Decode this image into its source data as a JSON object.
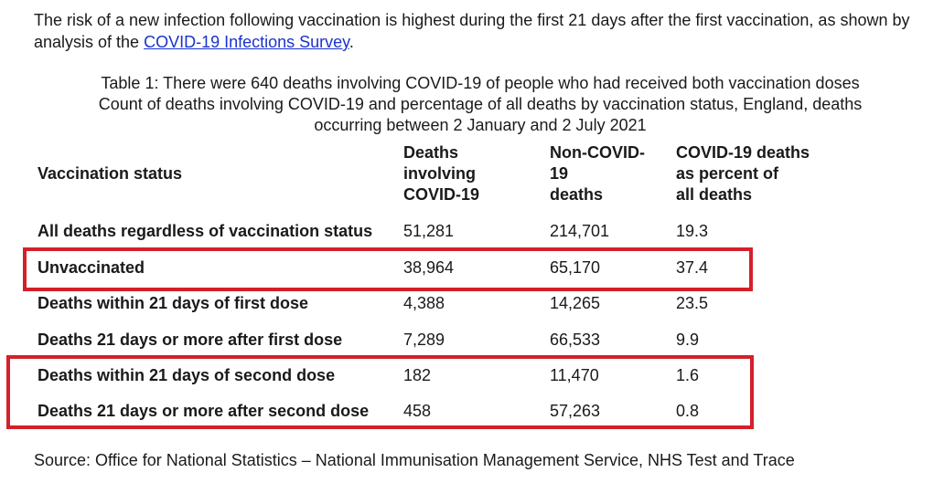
{
  "intro": {
    "text_before": "The risk of a new infection following vaccination is highest during the first 21 days after the first vaccination, as shown by analysis of the ",
    "link_text": "COVID-19 Infections Survey",
    "text_after": "."
  },
  "caption": {
    "line1": "Table 1: There were 640 deaths involving COVID-19 of people who had received both vaccination doses",
    "line2": "Count of deaths involving COVID-19 and percentage of all deaths by vaccination status, England, deaths",
    "line3": "occurring between 2 January and 2 July 2021"
  },
  "headers": {
    "status": "Vaccination status",
    "deaths_covid": [
      "Deaths",
      "involving",
      "COVID-19"
    ],
    "non_covid": [
      "Non-COVID-",
      "19",
      "deaths"
    ],
    "percent": [
      "COVID-19 deaths",
      "as percent of",
      "all deaths"
    ]
  },
  "rows": [
    {
      "label": "All deaths regardless of vaccination status",
      "deaths_covid": "51,281",
      "non_covid": "214,701",
      "percent": "19.3"
    },
    {
      "label": "Unvaccinated",
      "deaths_covid": "38,964",
      "non_covid": "65,170",
      "percent": "37.4"
    },
    {
      "label": "Deaths within 21 days of first dose",
      "deaths_covid": "4,388",
      "non_covid": "14,265",
      "percent": "23.5"
    },
    {
      "label": "Deaths 21 days or more after first dose",
      "deaths_covid": "7,289",
      "non_covid": "66,533",
      "percent": "9.9"
    },
    {
      "label": "Deaths within 21 days of second dose",
      "deaths_covid": "182",
      "non_covid": "11,470",
      "percent": "1.6"
    },
    {
      "label": "Deaths 21 days or more after second dose",
      "deaths_covid": "458",
      "non_covid": "57,263",
      "percent": "0.8"
    }
  ],
  "source": "Source: Office for National Statistics – National Immunisation Management Service, NHS Test and Trace",
  "colors": {
    "highlight_box": "#d3202a",
    "link": "#1a33cc"
  }
}
